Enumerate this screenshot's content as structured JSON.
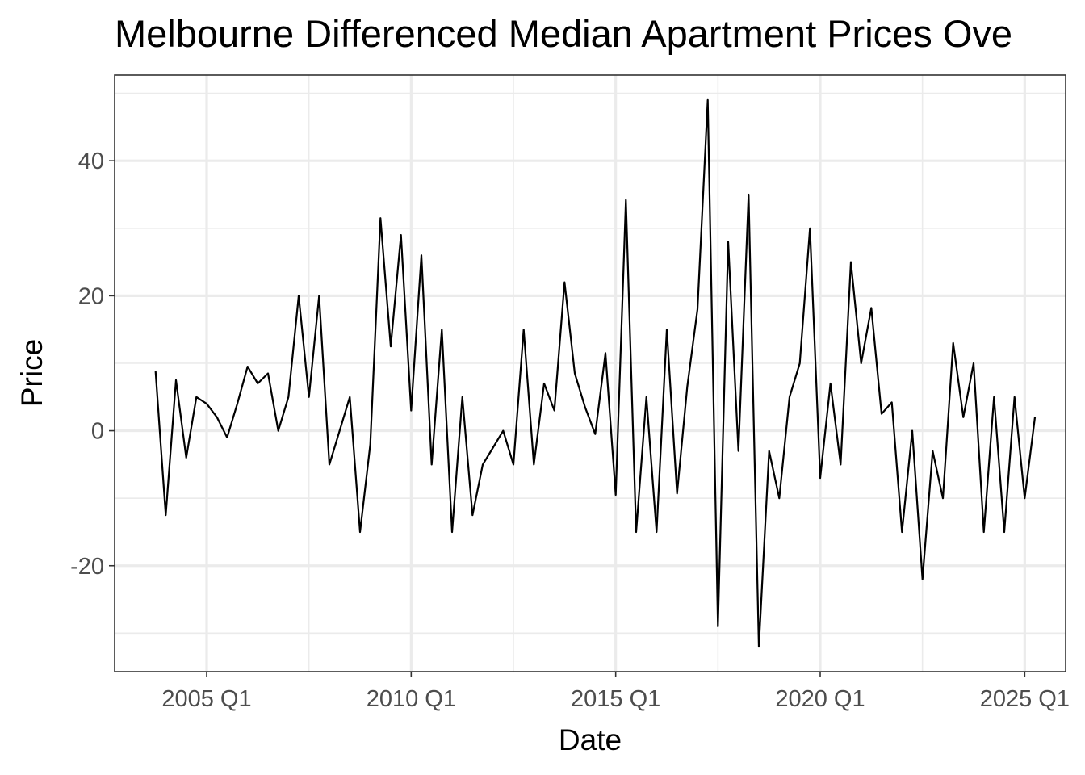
{
  "chart_data": {
    "type": "line",
    "title": "Melbourne Differenced Median Apartment Prices Ove",
    "xlabel": "Date",
    "ylabel": "Price",
    "x_tick_labels": [
      "2005 Q1",
      "2010 Q1",
      "2015 Q1",
      "2020 Q1",
      "2025 Q1"
    ],
    "x_tick_years": [
      2005,
      2010,
      2015,
      2020,
      2025
    ],
    "y_tick_labels": [
      "-20",
      "0",
      "20",
      "40"
    ],
    "y_tick_values": [
      -20,
      0,
      20,
      40
    ],
    "x_start": "2003 Q4",
    "xlim": [
      "2002 Q4",
      "2026 Q1"
    ],
    "ylim": [
      -35.7,
      52.7
    ],
    "grid": true,
    "series": [
      {
        "values": [
          8.8,
          -12.5,
          7.5,
          -4,
          5,
          4,
          2,
          -1,
          4,
          9.5,
          7,
          8.5,
          0,
          5,
          20,
          5,
          20,
          -5,
          0,
          5,
          -15,
          -2,
          31.5,
          12.5,
          29,
          3,
          26,
          -5,
          15,
          -15,
          5,
          -12.5,
          -5,
          -2.5,
          0,
          -5,
          15,
          -5,
          7,
          3,
          22,
          8.5,
          3.5,
          -0.5,
          11.5,
          -9.5,
          34.2,
          -15,
          5,
          -15,
          15,
          -9.3,
          6.5,
          18,
          49,
          -29,
          28,
          -3,
          35,
          -32,
          -3,
          -10,
          5,
          10,
          30,
          -7,
          7,
          -5,
          25,
          10,
          18.2,
          2.5,
          4.2,
          -15,
          0,
          -22,
          -3,
          -10,
          13,
          2,
          10,
          -15,
          5,
          -15,
          5,
          -10,
          2
        ]
      }
    ]
  }
}
